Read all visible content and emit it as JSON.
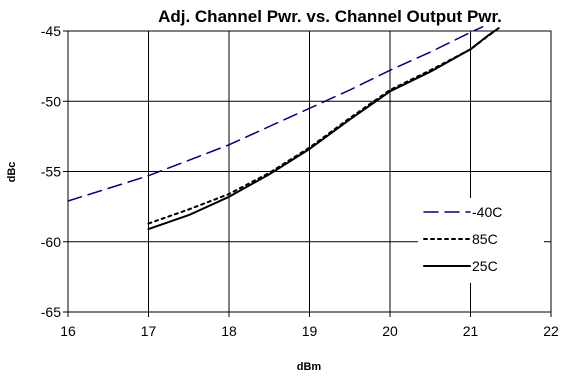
{
  "chart_data": {
    "type": "line",
    "title": "Adj. Channel Pwr. vs. Channel Output Pwr.",
    "xlabel": "dBm",
    "ylabel": "dBc",
    "xlim": [
      16,
      22
    ],
    "ylim": [
      -65,
      -45
    ],
    "x_ticks": [
      16,
      17,
      18,
      19,
      20,
      21,
      22
    ],
    "y_ticks": [
      -45,
      -50,
      -55,
      -60,
      -65
    ],
    "grid": true,
    "legend_position": "bottom-right",
    "series": [
      {
        "name": "-40C",
        "color": "#000080",
        "line_style": "long-dash",
        "points": [
          [
            16,
            -57.1
          ],
          [
            16.5,
            -56.2
          ],
          [
            17,
            -55.3
          ],
          [
            17.5,
            -54.2
          ],
          [
            18,
            -53.1
          ],
          [
            18.5,
            -51.8
          ],
          [
            19,
            -50.5
          ],
          [
            19.5,
            -49.2
          ],
          [
            20,
            -47.8
          ],
          [
            20.5,
            -46.5
          ],
          [
            21,
            -45.1
          ],
          [
            21.15,
            -44.7
          ]
        ]
      },
      {
        "name": "85C",
        "color": "#000000",
        "line_style": "dotted",
        "points": [
          [
            17,
            -58.7
          ],
          [
            17.5,
            -57.7
          ],
          [
            18,
            -56.6
          ],
          [
            18.5,
            -55.1
          ],
          [
            19,
            -53.3
          ],
          [
            19.5,
            -51.2
          ],
          [
            20,
            -49.2
          ],
          [
            20.5,
            -47.8
          ],
          [
            21,
            -46.3
          ],
          [
            21.3,
            -45.0
          ]
        ]
      },
      {
        "name": "25C",
        "color": "#000000",
        "line_style": "solid",
        "points": [
          [
            17,
            -59.1
          ],
          [
            17.5,
            -58.1
          ],
          [
            18,
            -56.8
          ],
          [
            18.5,
            -55.2
          ],
          [
            19,
            -53.4
          ],
          [
            19.5,
            -51.3
          ],
          [
            20,
            -49.3
          ],
          [
            20.5,
            -47.9
          ],
          [
            21,
            -46.3
          ],
          [
            21.2,
            -45.4
          ],
          [
            21.35,
            -44.8
          ]
        ]
      }
    ]
  }
}
